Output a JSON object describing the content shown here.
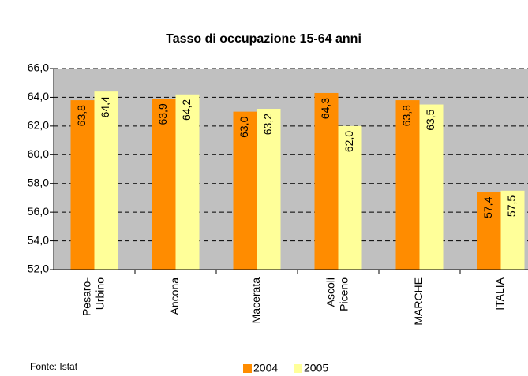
{
  "chart_data": {
    "type": "bar",
    "title": "Tasso di occupazione 15-64 anni",
    "source": "Fonte: Istat",
    "categories": [
      [
        "Pesaro-",
        "Urbino"
      ],
      [
        "Ancona"
      ],
      [
        "Macerata"
      ],
      [
        "Ascoli",
        "Piceno"
      ],
      [
        "MARCHE"
      ],
      [
        "ITALIA"
      ]
    ],
    "series": [
      {
        "name": "2004",
        "color": "#ff8c00",
        "values": [
          63.8,
          63.9,
          63.0,
          64.3,
          63.8,
          57.4
        ],
        "value_labels": [
          "63,8",
          "63,9",
          "63,0",
          "64,3",
          "63,8",
          "57,4"
        ]
      },
      {
        "name": "2005",
        "color": "#ffff99",
        "values": [
          64.4,
          64.2,
          63.2,
          62.0,
          63.5,
          57.5
        ],
        "value_labels": [
          "64,4",
          "64,2",
          "63,2",
          "62,0",
          "63,5",
          "57,5"
        ]
      }
    ],
    "ylim": [
      52,
      66
    ],
    "yticks": [
      {
        "value": 52,
        "label": "52,0"
      },
      {
        "value": 54,
        "label": "54,0"
      },
      {
        "value": 56,
        "label": "56,0"
      },
      {
        "value": 58,
        "label": "58,0"
      },
      {
        "value": 60,
        "label": "60,0"
      },
      {
        "value": 62,
        "label": "62,0"
      },
      {
        "value": 64,
        "label": "64,0"
      },
      {
        "value": 66,
        "label": "66,0"
      }
    ],
    "grid": true,
    "background": "#c0c0c0",
    "legend": "bottom"
  }
}
